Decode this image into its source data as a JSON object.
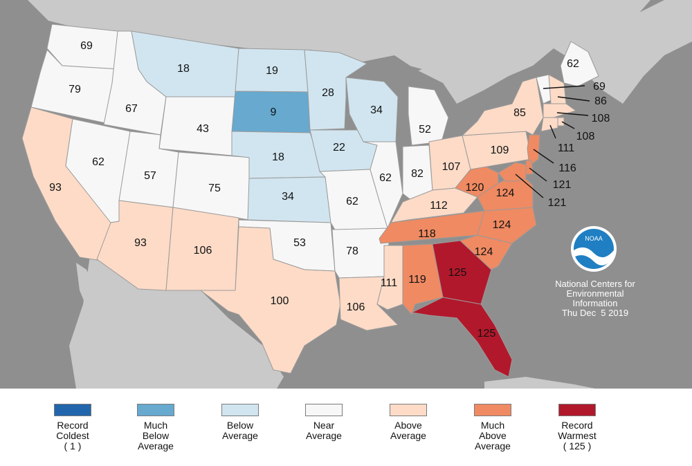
{
  "map": {
    "colors": {
      "ocean": "#8f8f8f",
      "land_outside": "#c9c9c9",
      "record_coldest": "#2166ac",
      "much_below": "#67a9cf",
      "below": "#d1e5f0",
      "near": "#f7f7f7",
      "above": "#fddbc7",
      "much_above": "#ef8a62",
      "record_warmest": "#b2182b"
    },
    "states": [
      {
        "id": "WA",
        "rank": "69",
        "category": "near"
      },
      {
        "id": "OR",
        "rank": "79",
        "category": "near"
      },
      {
        "id": "CA",
        "rank": "93",
        "category": "above"
      },
      {
        "id": "ID",
        "rank": "67",
        "category": "near"
      },
      {
        "id": "NV",
        "rank": "62",
        "category": "near"
      },
      {
        "id": "MT",
        "rank": "18",
        "category": "below"
      },
      {
        "id": "WY",
        "rank": "43",
        "category": "near"
      },
      {
        "id": "UT",
        "rank": "57",
        "category": "near"
      },
      {
        "id": "AZ",
        "rank": "93",
        "category": "above"
      },
      {
        "id": "CO",
        "rank": "75",
        "category": "near"
      },
      {
        "id": "NM",
        "rank": "106",
        "category": "above"
      },
      {
        "id": "ND",
        "rank": "19",
        "category": "below"
      },
      {
        "id": "SD",
        "rank": "9",
        "category": "much_below"
      },
      {
        "id": "NE",
        "rank": "18",
        "category": "below"
      },
      {
        "id": "KS",
        "rank": "34",
        "category": "below"
      },
      {
        "id": "OK",
        "rank": "53",
        "category": "near"
      },
      {
        "id": "TX",
        "rank": "100",
        "category": "above"
      },
      {
        "id": "MN",
        "rank": "28",
        "category": "below"
      },
      {
        "id": "IA",
        "rank": "22",
        "category": "below"
      },
      {
        "id": "MO",
        "rank": "62",
        "category": "near"
      },
      {
        "id": "AR",
        "rank": "78",
        "category": "near"
      },
      {
        "id": "LA",
        "rank": "106",
        "category": "above"
      },
      {
        "id": "WI",
        "rank": "34",
        "category": "below"
      },
      {
        "id": "IL",
        "rank": "62",
        "category": "near"
      },
      {
        "id": "MI",
        "rank": "52",
        "category": "near"
      },
      {
        "id": "IN",
        "rank": "82",
        "category": "near"
      },
      {
        "id": "OH",
        "rank": "107",
        "category": "above"
      },
      {
        "id": "KY",
        "rank": "112",
        "category": "above"
      },
      {
        "id": "TN",
        "rank": "118",
        "category": "much_above"
      },
      {
        "id": "MS",
        "rank": "111",
        "category": "above"
      },
      {
        "id": "AL",
        "rank": "119",
        "category": "much_above"
      },
      {
        "id": "GA",
        "rank": "125",
        "category": "record_warmest"
      },
      {
        "id": "FL",
        "rank": "125",
        "category": "record_warmest"
      },
      {
        "id": "SC",
        "rank": "124",
        "category": "much_above"
      },
      {
        "id": "NC",
        "rank": "124",
        "category": "much_above"
      },
      {
        "id": "VA",
        "rank": "124",
        "category": "much_above"
      },
      {
        "id": "WV",
        "rank": "120",
        "category": "much_above"
      },
      {
        "id": "PA",
        "rank": "109",
        "category": "above"
      },
      {
        "id": "NY",
        "rank": "85",
        "category": "above"
      },
      {
        "id": "ME",
        "rank": "62",
        "category": "near"
      },
      {
        "id": "VT",
        "rank": "69",
        "category": "near"
      },
      {
        "id": "NH",
        "rank": "86",
        "category": "above"
      },
      {
        "id": "MA",
        "rank": "108",
        "category": "above"
      },
      {
        "id": "RI",
        "rank": "108",
        "category": "above"
      },
      {
        "id": "CT",
        "rank": "111",
        "category": "above"
      },
      {
        "id": "NJ",
        "rank": "116",
        "category": "much_above"
      },
      {
        "id": "DE",
        "rank": "121",
        "category": "much_above"
      },
      {
        "id": "MD",
        "rank": "121",
        "category": "much_above"
      }
    ]
  },
  "credit": {
    "line1": "National Centers for",
    "line2": "Environmental",
    "line3": "Information",
    "date": "Thu Dec  5 2019",
    "logo_text": "NOAA"
  },
  "legend": [
    {
      "key": "record_coldest",
      "lines": [
        "Record",
        "Coldest",
        "( 1 )"
      ]
    },
    {
      "key": "much_below",
      "lines": [
        "Much",
        "Below",
        "Average"
      ]
    },
    {
      "key": "below",
      "lines": [
        "Below",
        "Average"
      ]
    },
    {
      "key": "near",
      "lines": [
        "Near",
        "Average"
      ]
    },
    {
      "key": "above",
      "lines": [
        "Above",
        "Average"
      ]
    },
    {
      "key": "much_above",
      "lines": [
        "Much",
        "Above",
        "Average"
      ]
    },
    {
      "key": "record_warmest",
      "lines": [
        "Record",
        "Warmest",
        "( 125 )"
      ]
    }
  ]
}
